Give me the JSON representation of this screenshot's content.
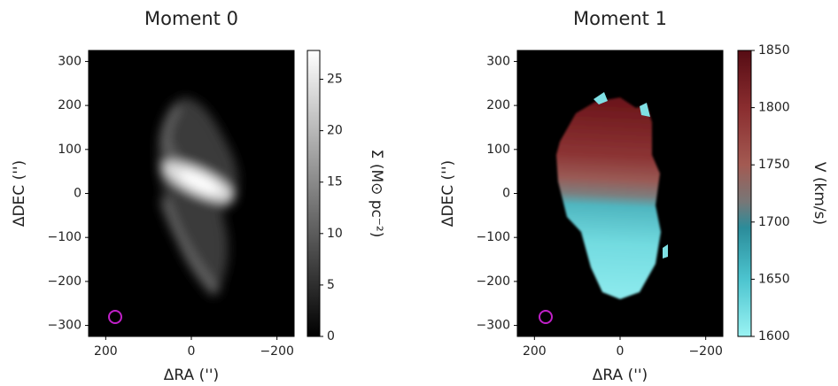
{
  "chart_data": [
    {
      "type": "image",
      "title": "Moment 0",
      "x_label": "ΔRA ('')",
      "y_label": "ΔDEC ('')",
      "xlim": [
        240,
        -240
      ],
      "xticks": [
        200,
        0,
        {
          "value": -200,
          "label": "−200"
        }
      ],
      "ylim": [
        -325,
        325
      ],
      "yticks": [
        {
          "value": -300,
          "label": "−300"
        },
        {
          "value": -200,
          "label": "−200"
        },
        {
          "value": -100,
          "label": "−100"
        },
        0,
        100,
        200,
        300
      ],
      "colorbar": {
        "label": "Σ (M⊙ pc⁻²)",
        "lim": [
          0,
          27.8
        ],
        "ticks": [
          0,
          5,
          10,
          15,
          20,
          25
        ]
      }
    },
    {
      "type": "image",
      "title": "Moment 1",
      "x_label": "ΔRA ('')",
      "y_label": "ΔDEC ('')",
      "xlim": [
        240,
        -240
      ],
      "xticks": [
        200,
        0,
        {
          "value": -200,
          "label": "−200"
        }
      ],
      "ylim": [
        -325,
        325
      ],
      "yticks": [
        {
          "value": -300,
          "label": "−300"
        },
        {
          "value": -200,
          "label": "−200"
        },
        {
          "value": -100,
          "label": "−100"
        },
        0,
        100,
        200,
        300
      ],
      "colorbar": {
        "label": "V (km/s)",
        "lim": [
          1600,
          1850
        ],
        "ticks": [
          1600,
          1650,
          1700,
          1750,
          1800,
          1850
        ]
      }
    }
  ]
}
